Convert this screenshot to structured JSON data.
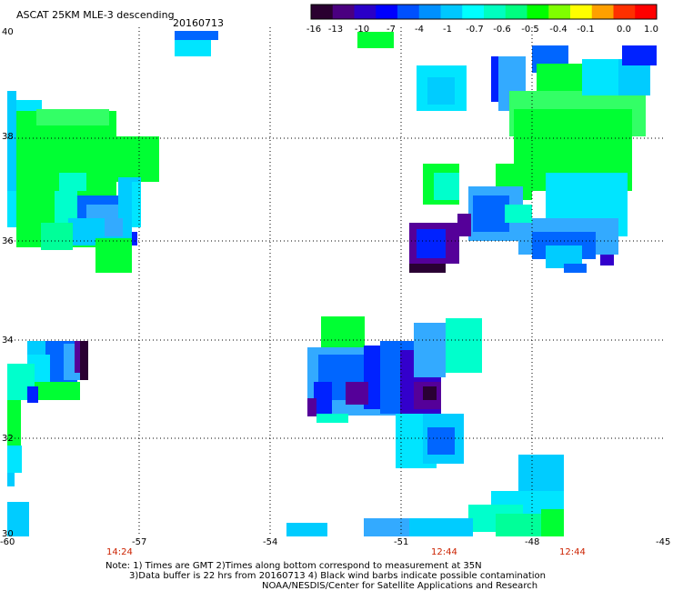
{
  "header": {
    "title": "ASCAT 25KM MLE-3 descending",
    "date": "20160713"
  },
  "colorbar": {
    "colors": [
      "#2a0030",
      "#4a0080",
      "#2a00c8",
      "#0000ff",
      "#0050ff",
      "#0090ff",
      "#00c8ff",
      "#00ffff",
      "#00ffc0",
      "#00ff80",
      "#00ff00",
      "#80ff00",
      "#ffff00",
      "#ffa000",
      "#ff3000",
      "#ff0000"
    ],
    "tick_labels": [
      "-16",
      "-13",
      "-10",
      "-7",
      "-4",
      "-1",
      "-0.7",
      "-0.6",
      "-0.5",
      "-0.4",
      "-0.1",
      "0.0",
      "1.0"
    ]
  },
  "axes": {
    "lon_labels": [
      "-60",
      "-57",
      "-54",
      "-51",
      "-48",
      "-45"
    ],
    "lat_labels": [
      "40",
      "38",
      "36",
      "34",
      "32",
      "30"
    ],
    "lon_range": [
      -60,
      -45
    ],
    "lat_range": [
      30,
      40
    ]
  },
  "times": [
    "14:24",
    "12:44",
    "12:44"
  ],
  "notes": {
    "line1": "Note: 1) Times are GMT 2)Times along bottom correspond to measurement at 35N",
    "line2": "3)Data buffer is 22 hrs from 20160713 4) Black wind barbs indicate possible contamination",
    "line3": "NOAA/NESDIS/Center for Satellite Applications and Research"
  }
}
